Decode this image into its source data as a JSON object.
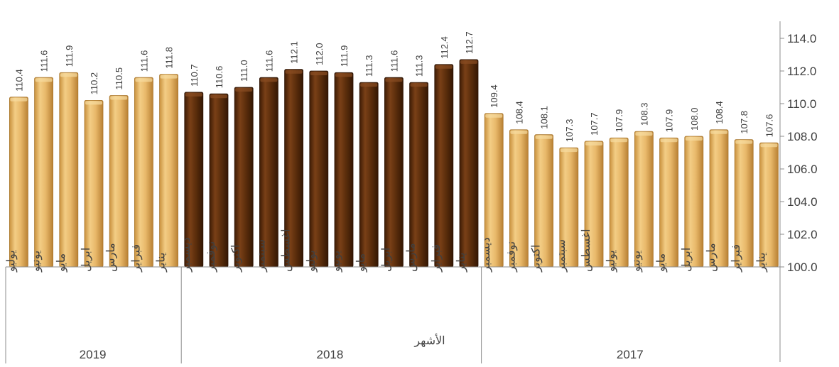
{
  "chart_data": {
    "type": "bar",
    "xlabel": "الأشهر",
    "ylim": [
      100.0,
      114.0
    ],
    "ytick_step": 2.0,
    "yticks": [
      "100.0",
      "102.0",
      "104.0",
      "106.0",
      "108.0",
      "110.0",
      "112.0",
      "114.0"
    ],
    "y_axis_position": "right",
    "x_direction": "right-to-left",
    "grid": false,
    "legend": "none",
    "colors": {
      "light": "#E8B86A",
      "dark": "#5C2E0C"
    },
    "groups": [
      {
        "year": "2017",
        "color": "light",
        "months": [
          "يناير",
          "فبراير",
          "مارس",
          "ابريل",
          "مايو",
          "يونيو",
          "يوليو",
          "اغسطس",
          "سبتمبر",
          "اكتوبر",
          "نوفمبر",
          "ديسمبر"
        ],
        "values": [
          107.6,
          107.8,
          108.4,
          108.0,
          107.9,
          108.3,
          107.9,
          107.7,
          107.3,
          108.1,
          108.4,
          109.4
        ]
      },
      {
        "year": "2018",
        "color": "dark",
        "months": [
          "يناير",
          "فبراير",
          "مارس",
          "ابريل",
          "مايو",
          "يونيو",
          "يوليو",
          "اغسطس",
          "سبتمبر",
          "اكتوبر",
          "نوفمبر",
          "ديسمبر"
        ],
        "values": [
          112.7,
          112.4,
          111.3,
          111.6,
          111.3,
          111.9,
          112.0,
          112.1,
          111.6,
          111.0,
          110.6,
          110.7
        ]
      },
      {
        "year": "2019",
        "color": "light",
        "months": [
          "يناير",
          "فبراير",
          "مارس",
          "ابريل",
          "مايو",
          "يونيو",
          "يوليو"
        ],
        "values": [
          111.8,
          111.6,
          110.5,
          110.2,
          111.9,
          111.6,
          110.4
        ]
      }
    ]
  }
}
